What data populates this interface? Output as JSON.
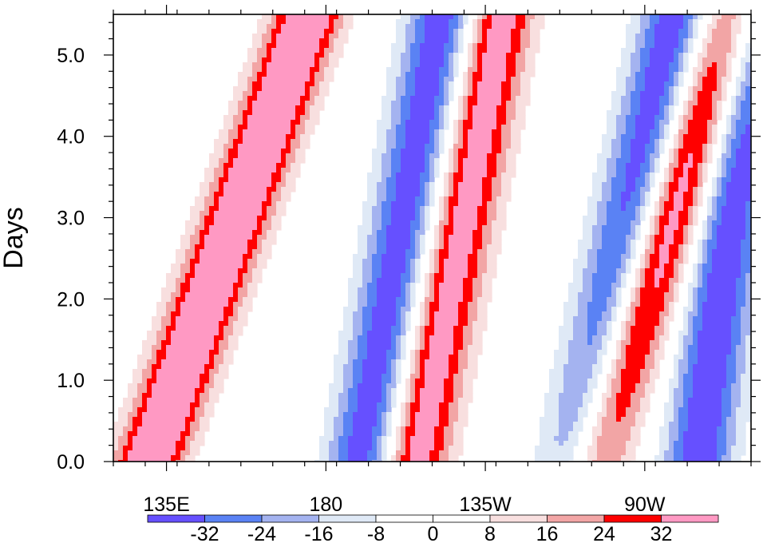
{
  "chart_data": {
    "type": "heatmap",
    "title": "",
    "xlabel": "",
    "ylabel": "Days",
    "x_ticks": [
      "135E",
      "180",
      "135W",
      "90W"
    ],
    "x_tick_values": [
      135,
      180,
      225,
      270
    ],
    "xlim": [
      120,
      300
    ],
    "ylim": [
      0,
      5.5
    ],
    "y_ticks": [
      "0.0",
      "1.0",
      "2.0",
      "3.0",
      "4.0",
      "5.0"
    ],
    "y_tick_values": [
      0,
      1,
      2,
      3,
      4,
      5
    ],
    "colorbar": {
      "labels": [
        "-32",
        "-24",
        "-16",
        "-8",
        "0",
        "8",
        "16",
        "24",
        "32"
      ],
      "levels": [
        -32,
        -24,
        -16,
        -8,
        0,
        8,
        16,
        24,
        32
      ],
      "colors": [
        "#6650ff",
        "#5a82f4",
        "#a4b3f0",
        "#dfe9f6",
        "#ffffff",
        "#ffffff",
        "#f8dfdf",
        "#f2a5a5",
        "#ff0000",
        "#ff99c3"
      ]
    },
    "features": [
      {
        "sign": "negative",
        "peak": -40,
        "lon_at_day0": 190,
        "lon_at_day5": 211
      },
      {
        "sign": "positive",
        "peak": 40,
        "lon_at_day0": 205,
        "lon_at_day5": 227
      },
      {
        "sign": "negative",
        "peak": -40,
        "lon_at_day0": 250,
        "lon_at_day5": 276
      },
      {
        "sign": "positive",
        "peak": 45,
        "lon_at_day0": 255,
        "lon_at_day5": 292
      },
      {
        "sign": "positive",
        "peak": 48,
        "lon_at_day0": 130,
        "lon_at_day5": 171
      },
      {
        "sign": "negative",
        "peak": -40,
        "lon_at_day0": 285,
        "lon_at_day5": 300
      }
    ]
  }
}
